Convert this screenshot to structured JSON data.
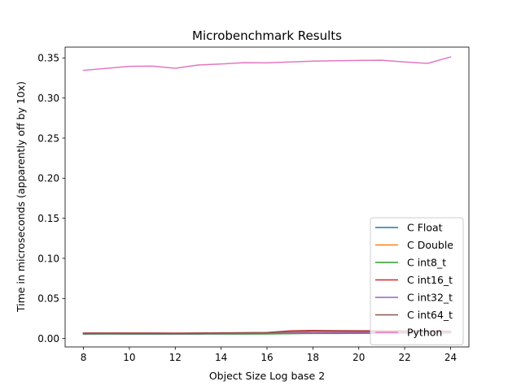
{
  "chart_data": {
    "type": "line",
    "title": "Microbenchmark Results",
    "xlabel": "Object Size Log base 2",
    "ylabel": "Time in microseconds (apparently off by 10x)",
    "xlim": [
      7.2,
      24.8
    ],
    "ylim": [
      -0.0105,
      0.3635
    ],
    "xticks": [
      8,
      10,
      12,
      14,
      16,
      18,
      20,
      22,
      24
    ],
    "xtick_labels": [
      "8",
      "10",
      "12",
      "14",
      "16",
      "18",
      "20",
      "22",
      "24"
    ],
    "yticks": [
      0.0,
      0.05,
      0.1,
      0.15,
      0.2,
      0.25,
      0.3,
      0.35
    ],
    "ytick_labels": [
      "0.00",
      "0.05",
      "0.10",
      "0.15",
      "0.20",
      "0.25",
      "0.30",
      "0.35"
    ],
    "grid": false,
    "legend_position": "lower right",
    "x": [
      8,
      9,
      10,
      11,
      12,
      13,
      14,
      15,
      16,
      17,
      18,
      19,
      20,
      21,
      22,
      23,
      24
    ],
    "series": [
      {
        "name": "C Float",
        "color": "#1f77b4",
        "values": [
          0.0062,
          0.0063,
          0.0062,
          0.0062,
          0.0061,
          0.0062,
          0.0063,
          0.0063,
          0.0064,
          0.0069,
          0.0072,
          0.0073,
          0.0074,
          0.0075,
          0.0076,
          0.0077,
          0.0078
        ]
      },
      {
        "name": "C Double",
        "color": "#ff7f0e",
        "values": [
          0.0063,
          0.0064,
          0.0063,
          0.0063,
          0.0062,
          0.0063,
          0.0064,
          0.0064,
          0.0066,
          0.0072,
          0.0075,
          0.0077,
          0.0078,
          0.0079,
          0.008,
          0.0081,
          0.0082
        ]
      },
      {
        "name": "C int8_t",
        "color": "#2ca02c",
        "values": [
          0.0055,
          0.0056,
          0.0055,
          0.0055,
          0.0055,
          0.0055,
          0.0056,
          0.0056,
          0.0057,
          0.0061,
          0.0063,
          0.0064,
          0.0065,
          0.0066,
          0.0067,
          0.0068,
          0.0069
        ]
      },
      {
        "name": "C int16_t",
        "color": "#d62728",
        "values": [
          0.0068,
          0.0069,
          0.0068,
          0.0068,
          0.0067,
          0.0068,
          0.0071,
          0.0072,
          0.0075,
          0.0095,
          0.01,
          0.0098,
          0.0097,
          0.0096,
          0.0095,
          0.0094,
          0.0093
        ]
      },
      {
        "name": "C int32_t",
        "color": "#9467bd",
        "values": [
          0.006,
          0.0061,
          0.006,
          0.006,
          0.0059,
          0.006,
          0.0061,
          0.0062,
          0.0063,
          0.0068,
          0.0071,
          0.0072,
          0.0073,
          0.0074,
          0.0075,
          0.0076,
          0.0077
        ]
      },
      {
        "name": "C int64_t",
        "color": "#8c564b",
        "values": [
          0.0065,
          0.0066,
          0.0065,
          0.0065,
          0.0064,
          0.0066,
          0.0069,
          0.0071,
          0.0073,
          0.0088,
          0.0092,
          0.0091,
          0.009,
          0.0089,
          0.0088,
          0.0087,
          0.0086
        ]
      },
      {
        "name": "Python",
        "color": "#e377c2",
        "values": [
          0.3345,
          0.337,
          0.3395,
          0.3398,
          0.3372,
          0.3412,
          0.3425,
          0.3441,
          0.3439,
          0.345,
          0.346,
          0.3465,
          0.3469,
          0.3472,
          0.345,
          0.3432,
          0.3512
        ]
      }
    ]
  }
}
